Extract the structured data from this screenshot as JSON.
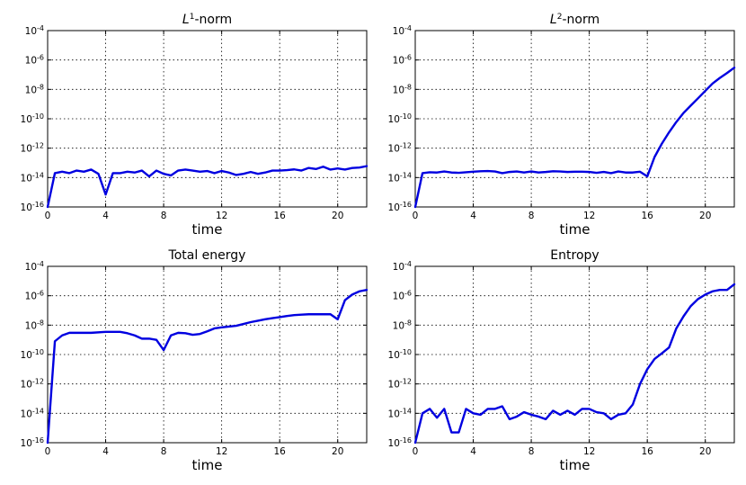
{
  "colors": {
    "line": "#0000e0"
  },
  "chart_data": [
    {
      "type": "line",
      "title": "L¹-norm",
      "title_base": "L",
      "title_sup": "1",
      "title_rest": "-norm",
      "xlabel": "time",
      "ylabel": "",
      "yscale": "log",
      "xlim": [
        0,
        22
      ],
      "ylim": [
        1e-16,
        0.0001
      ],
      "xticks": [
        "0",
        "4",
        "8",
        "12",
        "16",
        "20"
      ],
      "yticks": [
        "-16",
        "-14",
        "-12",
        "-10",
        "-8",
        "-6",
        "-4"
      ],
      "grid": true,
      "series": [
        {
          "x": [
            0,
            0.5,
            1,
            1.5,
            2,
            2.5,
            3,
            3.5,
            4,
            4.5,
            5,
            5.5,
            6,
            6.5,
            7,
            7.5,
            8,
            8.5,
            9,
            9.5,
            10,
            10.5,
            11,
            11.5,
            12,
            12.5,
            13,
            13.5,
            14,
            14.5,
            15,
            15.5,
            16,
            16.5,
            17,
            17.5,
            18,
            18.5,
            19,
            19.5,
            20,
            20.5,
            21,
            21.5,
            22
          ],
          "y": [
            1e-16,
            2e-14,
            2.5e-14,
            2e-14,
            3e-14,
            2.5e-14,
            3.5e-14,
            1.8e-14,
            7e-16,
            2e-14,
            2e-14,
            2.5e-14,
            2.2e-14,
            3e-14,
            1.2e-14,
            3e-14,
            1.8e-14,
            1.4e-14,
            3e-14,
            3.5e-14,
            3e-14,
            2.5e-14,
            2.8e-14,
            2e-14,
            2.8e-14,
            2.2e-14,
            1.5e-14,
            1.8e-14,
            2.4e-14,
            1.8e-14,
            2.2e-14,
            3e-14,
            3e-14,
            3.2e-14,
            3.6e-14,
            3e-14,
            4.5e-14,
            3.8e-14,
            5.5e-14,
            3.5e-14,
            4.2e-14,
            3.5e-14,
            4.5e-14,
            4.8e-14,
            6e-14
          ]
        }
      ]
    },
    {
      "type": "line",
      "title": "L²-norm",
      "title_base": "L",
      "title_sup": "2",
      "title_rest": "-norm",
      "xlabel": "time",
      "ylabel": "",
      "yscale": "log",
      "xlim": [
        0,
        22
      ],
      "ylim": [
        1e-16,
        0.0001
      ],
      "xticks": [
        "0",
        "4",
        "8",
        "12",
        "16",
        "20"
      ],
      "yticks": [
        "-16",
        "-14",
        "-12",
        "-10",
        "-8",
        "-6",
        "-4"
      ],
      "grid": true,
      "series": [
        {
          "x": [
            0,
            0.5,
            1,
            1.5,
            2,
            2.5,
            3,
            3.5,
            4,
            4.5,
            5,
            5.5,
            6,
            6.5,
            7,
            7.5,
            8,
            8.5,
            9,
            9.5,
            10,
            10.5,
            11,
            11.5,
            12,
            12.5,
            13,
            13.5,
            14,
            14.5,
            15,
            15.5,
            16,
            16.5,
            17,
            17.5,
            18,
            18.5,
            19,
            19.5,
            20,
            20.5,
            21,
            21.5,
            22
          ],
          "y": [
            1e-16,
            2e-14,
            2.3e-14,
            2.2e-14,
            2.6e-14,
            2.2e-14,
            2.1e-14,
            2.3e-14,
            2.5e-14,
            2.7e-14,
            2.8e-14,
            2.6e-14,
            2e-14,
            2.4e-14,
            2.6e-14,
            2.2e-14,
            2.6e-14,
            2.2e-14,
            2.4e-14,
            2.7e-14,
            2.6e-14,
            2.4e-14,
            2.5e-14,
            2.5e-14,
            2.4e-14,
            2.1e-14,
            2.4e-14,
            2e-14,
            2.6e-14,
            2.2e-14,
            2.2e-14,
            2.5e-14,
            1.2e-14,
            2.5e-13,
            2e-12,
            1.2e-11,
            6e-11,
            2.5e-10,
            8e-10,
            2.5e-09,
            8e-09,
            2.5e-08,
            6e-08,
            1.3e-07,
            3e-07
          ]
        }
      ]
    },
    {
      "type": "line",
      "title": "Total energy",
      "xlabel": "time",
      "ylabel": "",
      "yscale": "log",
      "xlim": [
        0,
        22
      ],
      "ylim": [
        1e-16,
        0.0001
      ],
      "xticks": [
        "0",
        "4",
        "8",
        "12",
        "16",
        "20"
      ],
      "yticks": [
        "-16",
        "-14",
        "-12",
        "-10",
        "-8",
        "-6",
        "-4"
      ],
      "grid": true,
      "series": [
        {
          "x": [
            0,
            0.5,
            1,
            1.5,
            2,
            3,
            4,
            5,
            5.5,
            6,
            6.5,
            7,
            7.5,
            8,
            8.5,
            9,
            9.5,
            10,
            10.5,
            11,
            11.5,
            12,
            12.5,
            13,
            13.5,
            14,
            14.5,
            15,
            15.5,
            16,
            16.5,
            17,
            17.5,
            18,
            18.5,
            19,
            19.5,
            20,
            20.5,
            21,
            21.5,
            22
          ],
          "y": [
            1e-16,
            8e-10,
            2e-09,
            3e-09,
            3e-09,
            3e-09,
            3.5e-09,
            3.5e-09,
            2.8e-09,
            2e-09,
            1.2e-09,
            1.2e-09,
            1e-09,
            2e-10,
            2e-09,
            3e-09,
            2.8e-09,
            2.2e-09,
            2.5e-09,
            3.8e-09,
            6e-09,
            7e-09,
            8e-09,
            9e-09,
            1.2e-08,
            1.6e-08,
            2e-08,
            2.5e-08,
            3e-08,
            3.5e-08,
            4.2e-08,
            4.8e-08,
            5.2e-08,
            5.5e-08,
            5.5e-08,
            5.5e-08,
            5.5e-08,
            2.5e-08,
            5e-07,
            1.2e-06,
            2e-06,
            2.5e-06
          ]
        }
      ]
    },
    {
      "type": "line",
      "title": "Entropy",
      "xlabel": "time",
      "ylabel": "",
      "yscale": "log",
      "xlim": [
        0,
        22
      ],
      "ylim": [
        1e-16,
        0.0001
      ],
      "xticks": [
        "0",
        "4",
        "8",
        "12",
        "16",
        "20"
      ],
      "yticks": [
        "-16",
        "-14",
        "-12",
        "-10",
        "-8",
        "-6",
        "-4"
      ],
      "grid": true,
      "series": [
        {
          "x": [
            0,
            0.5,
            1,
            1.5,
            2,
            2.5,
            3,
            3.5,
            4,
            4.5,
            5,
            5.5,
            6,
            6.5,
            7,
            7.5,
            8,
            8.5,
            9,
            9.5,
            10,
            10.5,
            11,
            11.5,
            12,
            12.5,
            13,
            13.5,
            14,
            14.5,
            15,
            15.5,
            16,
            16.5,
            17,
            17.5,
            18,
            18.5,
            19,
            19.5,
            20,
            20.5,
            21,
            21.5,
            22
          ],
          "y": [
            1e-16,
            1e-14,
            2e-14,
            5e-15,
            2e-14,
            5e-16,
            5e-16,
            2e-14,
            1e-14,
            8e-15,
            2e-14,
            2e-14,
            3e-14,
            4e-15,
            6e-15,
            1.2e-14,
            8e-15,
            6e-15,
            4e-15,
            1.5e-14,
            8e-15,
            1.5e-14,
            8e-15,
            2e-14,
            2e-14,
            1.2e-14,
            1e-14,
            4e-15,
            8e-15,
            1e-14,
            4e-14,
            1e-12,
            1e-11,
            5e-11,
            1.2e-10,
            3e-10,
            6e-09,
            4e-08,
            2e-07,
            6e-07,
            1.2e-06,
            2e-06,
            2.5e-06,
            2.5e-06,
            6e-06
          ]
        }
      ]
    }
  ]
}
